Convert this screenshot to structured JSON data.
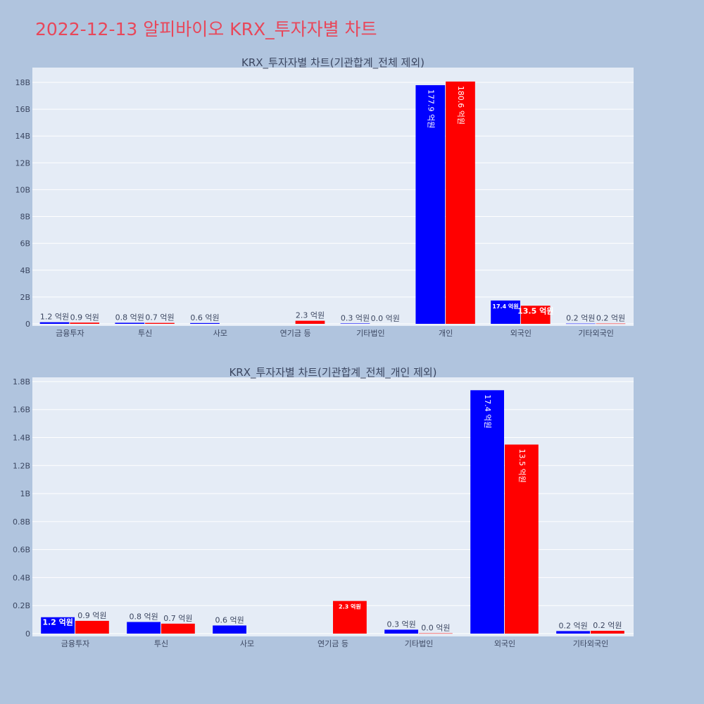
{
  "page_title": "2022-12-13 알피바이오 KRX_투자자별 차트",
  "colors": {
    "buy": "#0000ff",
    "sell": "#ff0000",
    "plot_bg": "#e5ecf6",
    "page_bg": "#b0c4de",
    "title": "#e8475a"
  },
  "chart_data": [
    {
      "type": "bar",
      "title": "KRX_투자자별 차트(기관합계_전체 제외)",
      "categories": [
        "금융투자",
        "투신",
        "사모",
        "연기금 등",
        "기타법인",
        "개인",
        "외국인",
        "기타외국인"
      ],
      "series": [
        {
          "color": "#0000ff",
          "values": [
            0.12,
            0.08,
            0.06,
            0,
            0.03,
            17.79,
            1.74,
            0.02
          ],
          "labels": [
            "1.2 억원",
            "0.8 억원",
            "0.6 억원",
            "",
            "0.3 억원",
            "177.9 억원",
            "17.4 억원",
            "0.2 억원"
          ]
        },
        {
          "color": "#ff0000",
          "values": [
            0.09,
            0.07,
            0,
            0.23,
            0.0,
            18.06,
            1.35,
            0.02
          ],
          "labels": [
            "0.9 억원",
            "0.7 억원",
            "",
            "2.3 억원",
            "0.0 억원",
            "180.6 억원",
            "13.5 억원",
            "0.2 억원"
          ]
        }
      ],
      "yticks": [
        "0",
        "2B",
        "4B",
        "6B",
        "8B",
        "10B",
        "12B",
        "14B",
        "16B",
        "18B"
      ],
      "ytick_values": [
        0,
        2,
        4,
        6,
        8,
        10,
        12,
        14,
        16,
        18
      ],
      "ylim": [
        0,
        19.1
      ],
      "grid": true,
      "legend": "none"
    },
    {
      "type": "bar",
      "title": "KRX_투자자별 차트(기관합계_전체_개인 제외)",
      "categories": [
        "금융투자",
        "투신",
        "사모",
        "연기금 등",
        "기타법인",
        "외국인",
        "기타외국인"
      ],
      "series": [
        {
          "color": "#0000ff",
          "values": [
            0.117,
            0.083,
            0.058,
            0,
            0.028,
            1.738,
            0.018
          ],
          "labels": [
            "1.2 억원",
            "0.8 억원",
            "0.6 억원",
            "",
            "0.3 억원",
            "17.4 억원",
            "0.2 억원"
          ]
        },
        {
          "color": "#ff0000",
          "values": [
            0.091,
            0.071,
            0,
            0.233,
            0.002,
            1.35,
            0.02
          ],
          "labels": [
            "0.9 억원",
            "0.7 억원",
            "",
            "2.3 억원",
            "0.0 억원",
            "13.5 억원",
            "0.2 억원"
          ]
        }
      ],
      "yticks": [
        "0",
        "0.2B",
        "0.4B",
        "0.6B",
        "0.8B",
        "1B",
        "1.2B",
        "1.4B",
        "1.6B",
        "1.8B"
      ],
      "ytick_values": [
        0,
        0.2,
        0.4,
        0.6,
        0.8,
        1.0,
        1.2,
        1.4,
        1.6,
        1.8
      ],
      "ylim": [
        0,
        1.83
      ],
      "grid": true,
      "legend": "none"
    }
  ]
}
